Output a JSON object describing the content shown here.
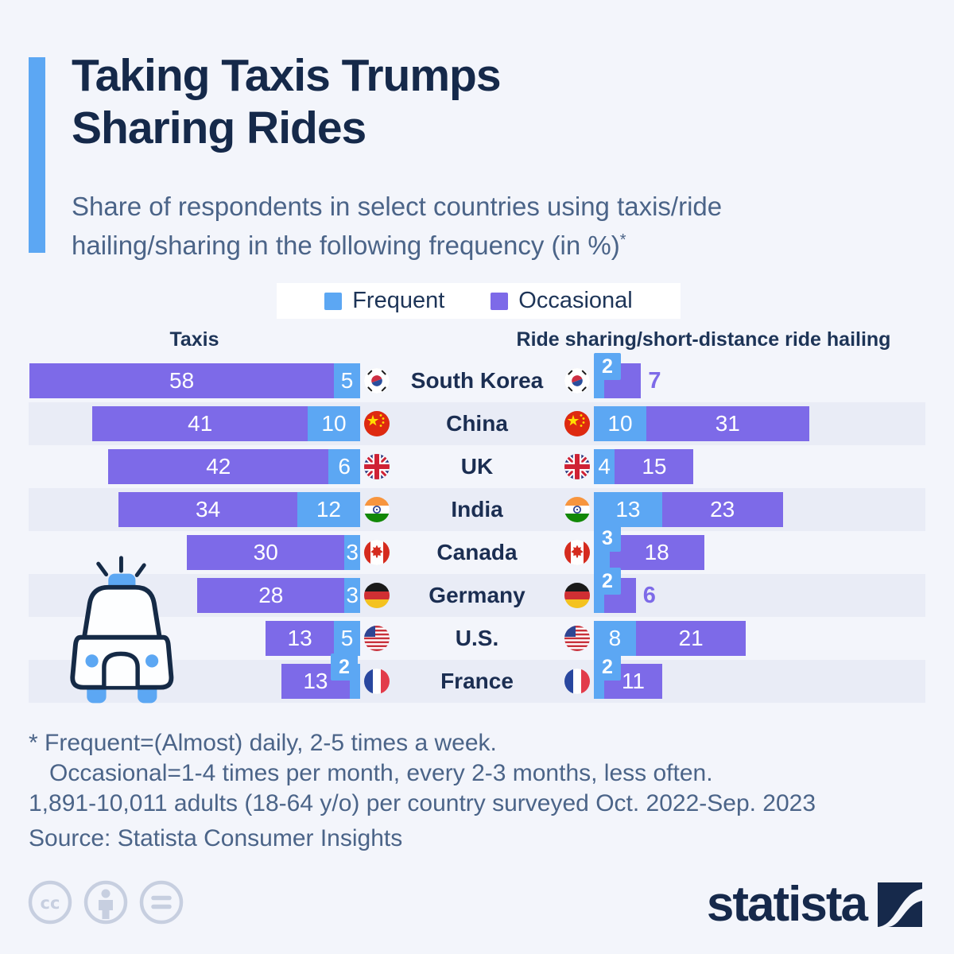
{
  "title": {
    "line1": "Taking Taxis Trumps",
    "line2": "Sharing Rides"
  },
  "subtitle": {
    "line1": "Share of respondents in select countries using taxis/ride",
    "line2": "hailing/sharing in the following frequency (in %)",
    "footnote_marker": "*"
  },
  "legend": {
    "items": [
      {
        "label": "Frequent",
        "color": "#5CA7F3"
      },
      {
        "label": "Occasional",
        "color": "#7D6AE8"
      }
    ]
  },
  "chart_data": {
    "type": "bar",
    "variant": "diverging-grouped-horizontal",
    "unit": "%",
    "left_header": "Taxis",
    "right_header": "Ride sharing/short-distance ride hailing",
    "series": [
      "Frequent",
      "Occasional"
    ],
    "colors": {
      "frequent": "#5CA7F3",
      "occasional": "#7D6AE8"
    },
    "rows": [
      {
        "country": "South Korea",
        "flag": "kr",
        "taxis": {
          "occasional": 58,
          "frequent": 5
        },
        "ride_sharing": {
          "frequent": 2,
          "occasional": 7
        }
      },
      {
        "country": "China",
        "flag": "cn",
        "taxis": {
          "occasional": 41,
          "frequent": 10
        },
        "ride_sharing": {
          "frequent": 10,
          "occasional": 31
        }
      },
      {
        "country": "UK",
        "flag": "gb",
        "taxis": {
          "occasional": 42,
          "frequent": 6
        },
        "ride_sharing": {
          "frequent": 4,
          "occasional": 15
        }
      },
      {
        "country": "India",
        "flag": "in",
        "taxis": {
          "occasional": 34,
          "frequent": 12
        },
        "ride_sharing": {
          "frequent": 13,
          "occasional": 23
        }
      },
      {
        "country": "Canada",
        "flag": "ca",
        "taxis": {
          "occasional": 30,
          "frequent": 3
        },
        "ride_sharing": {
          "frequent": 3,
          "occasional": 18
        }
      },
      {
        "country": "Germany",
        "flag": "de",
        "taxis": {
          "occasional": 28,
          "frequent": 3
        },
        "ride_sharing": {
          "frequent": 2,
          "occasional": 6
        }
      },
      {
        "country": "U.S.",
        "flag": "us",
        "taxis": {
          "occasional": 13,
          "frequent": 5
        },
        "ride_sharing": {
          "frequent": 8,
          "occasional": 21
        }
      },
      {
        "country": "France",
        "flag": "fr",
        "taxis": {
          "occasional": 13,
          "frequent": 2
        },
        "ride_sharing": {
          "frequent": 2,
          "occasional": 11
        }
      }
    ]
  },
  "footnotes": {
    "line1": "* Frequent=(Almost) daily, 2-5 times a week.",
    "line2": "Occasional=1-4 times per month, every 2-3 months, less often.",
    "line3": "1,891-10,011 adults (18-64 y/o) per country surveyed Oct. 2022-Sep. 2023",
    "source": "Source: Statista Consumer Insights"
  },
  "branding": {
    "logo_text": "statista"
  }
}
